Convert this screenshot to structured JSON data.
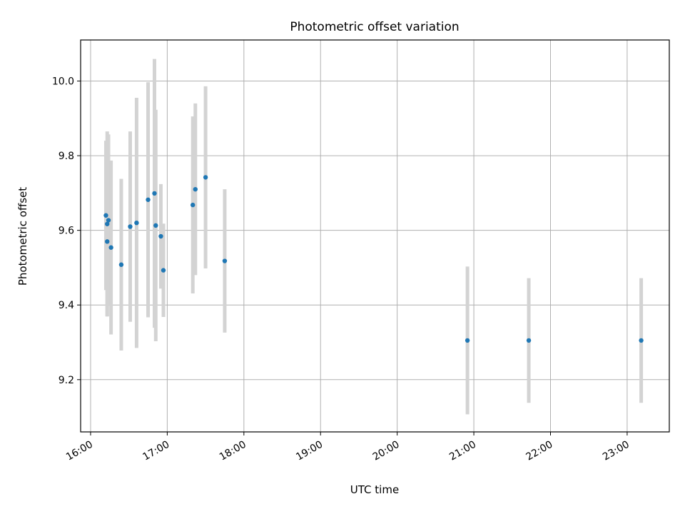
{
  "chart_data": {
    "type": "scatter",
    "title": "Photometric offset variation",
    "xlabel": "UTC time",
    "ylabel": "Photometric offset",
    "x_tick_labels": [
      "16:00",
      "17:00",
      "18:00",
      "19:00",
      "20:00",
      "21:00",
      "22:00",
      "23:00"
    ],
    "y_tick_labels": [
      "9.2",
      "9.4",
      "9.6",
      "9.8",
      "10.0"
    ],
    "x_ticks_hours": [
      16,
      17,
      18,
      19,
      20,
      21,
      22,
      23
    ],
    "y_ticks": [
      9.2,
      9.4,
      9.6,
      9.8,
      10.0
    ],
    "xlim_hours": [
      15.87,
      23.55
    ],
    "ylim": [
      9.06,
      10.11
    ],
    "grid": true,
    "series": [
      {
        "marker_color": "#1f77b4",
        "error_bar_color": "#d3d3d3",
        "points": [
          {
            "time": "16:12",
            "y": 9.64,
            "err": 0.2
          },
          {
            "time": "16:13",
            "y": 9.617,
            "err": 0.248
          },
          {
            "time": "16:13",
            "y": 9.57,
            "err": 0.2
          },
          {
            "time": "16:14",
            "y": 9.627,
            "err": 0.23
          },
          {
            "time": "16:16",
            "y": 9.554,
            "err": 0.233
          },
          {
            "time": "16:24",
            "y": 9.508,
            "err": 0.23
          },
          {
            "time": "16:31",
            "y": 9.61,
            "err": 0.255
          },
          {
            "time": "16:36",
            "y": 9.62,
            "err": 0.335
          },
          {
            "time": "16:45",
            "y": 9.682,
            "err": 0.315
          },
          {
            "time": "16:50",
            "y": 9.699,
            "err": 0.36
          },
          {
            "time": "16:51",
            "y": 9.613,
            "err": 0.31
          },
          {
            "time": "16:55",
            "y": 9.584,
            "err": 0.14
          },
          {
            "time": "16:57",
            "y": 9.493,
            "err": 0.125
          },
          {
            "time": "17:20",
            "y": 9.668,
            "err": 0.237
          },
          {
            "time": "17:22",
            "y": 9.71,
            "err": 0.23
          },
          {
            "time": "17:30",
            "y": 9.742,
            "err": 0.244
          },
          {
            "time": "17:45",
            "y": 9.518,
            "err": 0.192
          },
          {
            "time": "20:55",
            "y": 9.305,
            "err": 0.198
          },
          {
            "time": "21:43",
            "y": 9.305,
            "err": 0.167
          },
          {
            "time": "23:11",
            "y": 9.305,
            "err": 0.167
          }
        ]
      }
    ]
  }
}
